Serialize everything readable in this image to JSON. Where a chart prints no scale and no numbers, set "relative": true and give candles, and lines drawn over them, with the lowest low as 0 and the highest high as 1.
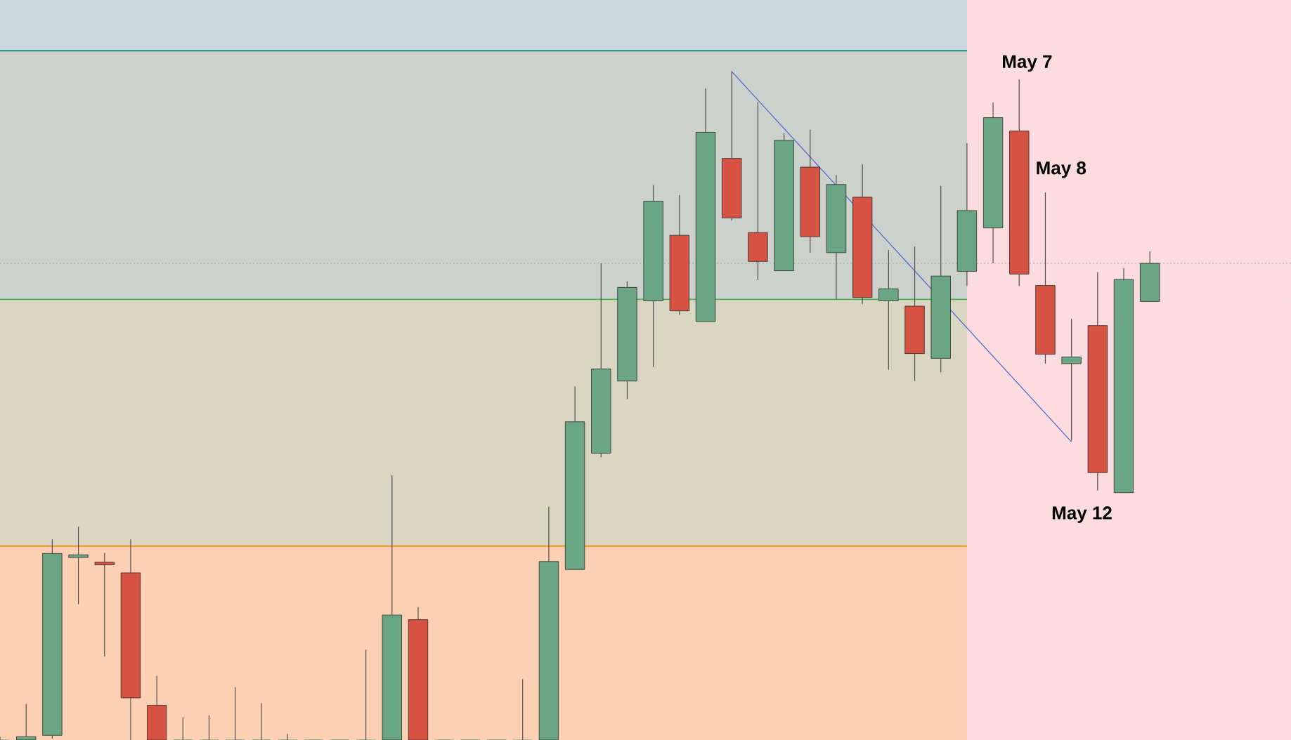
{
  "chart_data": {
    "type": "candlestick",
    "relative": true,
    "categories": [
      null,
      null,
      null,
      null,
      null,
      null,
      null,
      null,
      null,
      null,
      null,
      null,
      null,
      null,
      null,
      null,
      null,
      null,
      null,
      null,
      null,
      null,
      null,
      null,
      null,
      null,
      null,
      null,
      null,
      null,
      null,
      null,
      null,
      null,
      null,
      null,
      null,
      null,
      null,
      null,
      null,
      null,
      null,
      null,
      null
    ],
    "ohlc": [
      [
        0,
        0.005,
        0,
        0
      ],
      [
        0,
        0.054,
        0,
        0.005
      ],
      [
        0.007,
        0.3,
        0.002,
        0.279
      ],
      [
        0.273,
        0.319,
        0.203,
        0.277
      ],
      [
        0.266,
        0.28,
        0.125,
        0.262
      ],
      [
        0.25,
        0.3,
        0,
        0.063
      ],
      [
        0.052,
        0.096,
        0,
        0
      ],
      [
        0,
        0.034,
        0,
        0
      ],
      [
        0,
        0.037,
        0,
        0
      ],
      [
        0,
        0.079,
        0,
        0
      ],
      [
        0,
        0.055,
        0,
        0
      ],
      [
        0,
        0.009,
        0,
        0
      ],
      [
        0,
        0,
        0,
        0
      ],
      [
        0,
        0,
        0,
        0
      ],
      [
        0,
        0.135,
        0,
        0
      ],
      [
        0,
        0.396,
        0,
        0.187
      ],
      [
        0.18,
        0.199,
        0,
        0
      ],
      [
        0,
        0,
        0,
        0
      ],
      [
        0,
        0,
        0,
        0
      ],
      [
        0,
        0,
        0,
        0
      ],
      [
        0,
        0.091,
        0,
        0
      ],
      [
        0,
        0.349,
        0,
        0.267
      ],
      [
        0.255,
        0.529,
        0.255,
        0.476
      ],
      [
        0.429,
        0.713,
        0.423,
        0.555
      ],
      [
        0.537,
        0.686,
        0.51,
        0.677
      ],
      [
        0.657,
        0.83,
        0.558,
        0.806
      ],
      [
        0.755,
        0.815,
        0.636,
        0.642
      ],
      [
        0.626,
        0.975,
        0.626,
        0.909
      ],
      [
        0.87,
        1.0,
        0.777,
        0.781
      ],
      [
        0.759,
        0.954,
        0.688,
        0.716
      ],
      [
        0.702,
        0.908,
        0.702,
        0.897
      ],
      [
        0.857,
        0.913,
        0.729,
        0.753
      ],
      [
        0.729,
        0.845,
        0.659,
        0.831
      ],
      [
        0.812,
        0.861,
        0.652,
        0.662
      ],
      [
        0.657,
        0.733,
        0.554,
        0.675
      ],
      [
        0.649,
        0.738,
        0.537,
        0.578
      ],
      [
        0.571,
        0.829,
        0.55,
        0.694
      ],
      [
        0.701,
        0.893,
        0.679,
        0.792
      ],
      [
        0.766,
        0.954,
        0.713,
        0.931
      ],
      [
        0.911,
        0.988,
        0.679,
        0.697
      ],
      [
        0.68,
        0.819,
        0.563,
        0.577
      ],
      [
        0.563,
        0.63,
        0.448,
        0.573
      ],
      [
        0.62,
        0.7,
        0.373,
        0.4
      ],
      [
        0.37,
        0.706,
        0.37,
        0.689
      ],
      [
        0.656,
        0.731,
        0.656,
        0.713
      ]
    ],
    "colors": [
      "#6aa684",
      "#6aa684",
      "#6aa684",
      "#6aa684",
      "#d65243",
      "#d65243",
      "#d65243",
      "#6aa684",
      "#6aa684",
      "#6aa684",
      "#6aa684",
      "#6aa684",
      "#6aa684",
      "#6aa684",
      "#6aa684",
      "#6aa684",
      "#d65243",
      "#6aa684",
      "#6aa684",
      "#6aa684",
      "#6aa684",
      "#6aa684",
      "#6aa684",
      "#6aa684",
      "#6aa684",
      "#6aa684",
      "#d65243",
      "#6aa684",
      "#d65243",
      "#d65243",
      "#6aa684",
      "#d65243",
      "#6aa684",
      "#d65243",
      "#6aa684",
      "#d65243",
      "#6aa684",
      "#6aa684",
      "#6aa684",
      "#d65243",
      "#d65243",
      "#6aa684",
      "#d65243",
      "#6aa684",
      "#6aa684"
    ],
    "series": [
      {
        "type": "line",
        "values": [
          null,
          null,
          null,
          null,
          null,
          null,
          null,
          null,
          null,
          null,
          null,
          null,
          null,
          null,
          null,
          null,
          null,
          null,
          null,
          null,
          null,
          null,
          null,
          null,
          null,
          null,
          null,
          null,
          1.0,
          null,
          null,
          null,
          null,
          null,
          null,
          null,
          null,
          null,
          null,
          null,
          null,
          0.446,
          null,
          null,
          null
        ],
        "color": "#4a63d6"
      }
    ],
    "bands": [
      {
        "axis": "y",
        "from": 1.031,
        "to": 1.107,
        "color": "#cbd9dd"
      },
      {
        "axis": "y",
        "from": 0.659,
        "to": 1.031,
        "color": "#cdd1cb"
      },
      {
        "axis": "y",
        "from": 0.29,
        "to": 0.659,
        "color": "#d9d6c2"
      },
      {
        "axis": "y",
        "from": 0,
        "to": 0.29,
        "color": "#fdd0b3"
      }
    ],
    "ref_lines": [
      {
        "axis": "y",
        "value": 1.031,
        "color": "#1a8a7f"
      },
      {
        "axis": "y",
        "value": 0.659,
        "color": "#4caf50"
      },
      {
        "axis": "y",
        "value": 0.29,
        "color": "#f7931e"
      },
      {
        "axis": "y",
        "value": 0.713,
        "color": "#9ab0a8",
        "line_style": "dotted"
      }
    ],
    "annotations": [
      "May 7",
      "May 8",
      "May 12"
    ]
  }
}
